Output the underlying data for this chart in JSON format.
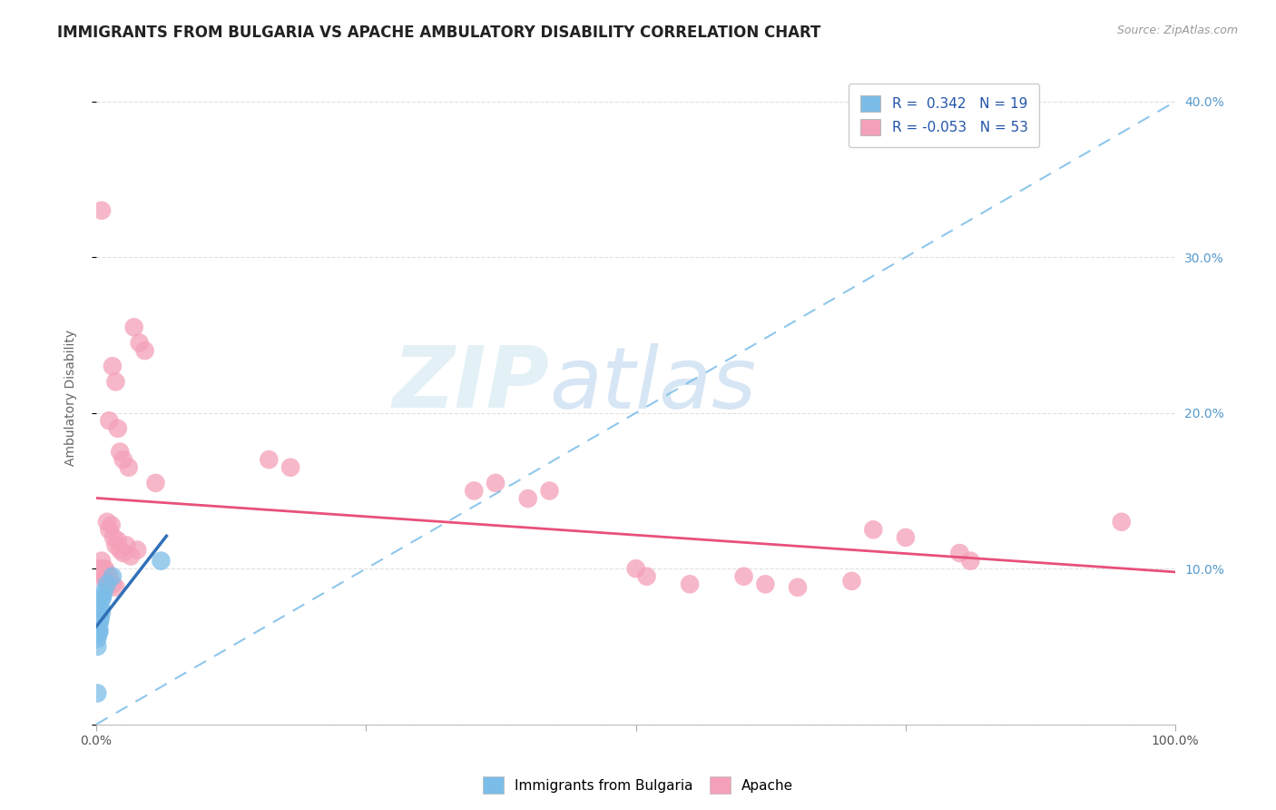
{
  "title": "IMMIGRANTS FROM BULGARIA VS APACHE AMBULATORY DISABILITY CORRELATION CHART",
  "source": "Source: ZipAtlas.com",
  "ylabel": "Ambulatory Disability",
  "xlim": [
    0.0,
    1.0
  ],
  "ylim": [
    0.0,
    0.42
  ],
  "y_ticks": [
    0.0,
    0.1,
    0.2,
    0.3,
    0.4
  ],
  "y_tick_labels": [
    "",
    "10.0%",
    "20.0%",
    "30.0%",
    "40.0%"
  ],
  "x_ticks": [
    0.0,
    0.25,
    0.5,
    0.75,
    1.0
  ],
  "x_tick_labels": [
    "0.0%",
    "",
    "",
    "",
    "100.0%"
  ],
  "blue_color": "#7bbde8",
  "pink_color": "#f4a0b8",
  "blue_line_color": "#3070b8",
  "pink_line_color": "#e8507a",
  "blue_scatter": [
    [
      0.001,
      0.06
    ],
    [
      0.001,
      0.055
    ],
    [
      0.001,
      0.05
    ],
    [
      0.002,
      0.065
    ],
    [
      0.002,
      0.06
    ],
    [
      0.002,
      0.058
    ],
    [
      0.003,
      0.07
    ],
    [
      0.003,
      0.065
    ],
    [
      0.003,
      0.06
    ],
    [
      0.004,
      0.075
    ],
    [
      0.004,
      0.068
    ],
    [
      0.005,
      0.08
    ],
    [
      0.005,
      0.072
    ],
    [
      0.006,
      0.082
    ],
    [
      0.007,
      0.085
    ],
    [
      0.01,
      0.09
    ],
    [
      0.015,
      0.095
    ],
    [
      0.06,
      0.105
    ],
    [
      0.001,
      0.02
    ]
  ],
  "pink_scatter": [
    [
      0.005,
      0.33
    ],
    [
      0.015,
      0.23
    ],
    [
      0.018,
      0.22
    ],
    [
      0.012,
      0.195
    ],
    [
      0.02,
      0.19
    ],
    [
      0.022,
      0.175
    ],
    [
      0.025,
      0.17
    ],
    [
      0.03,
      0.165
    ],
    [
      0.035,
      0.255
    ],
    [
      0.04,
      0.245
    ],
    [
      0.045,
      0.24
    ],
    [
      0.055,
      0.155
    ],
    [
      0.01,
      0.13
    ],
    [
      0.012,
      0.125
    ],
    [
      0.014,
      0.128
    ],
    [
      0.016,
      0.12
    ],
    [
      0.018,
      0.115
    ],
    [
      0.02,
      0.118
    ],
    [
      0.022,
      0.112
    ],
    [
      0.025,
      0.11
    ],
    [
      0.028,
      0.115
    ],
    [
      0.032,
      0.108
    ],
    [
      0.038,
      0.112
    ],
    [
      0.002,
      0.1
    ],
    [
      0.003,
      0.095
    ],
    [
      0.004,
      0.098
    ],
    [
      0.005,
      0.105
    ],
    [
      0.006,
      0.1
    ],
    [
      0.007,
      0.095
    ],
    [
      0.008,
      0.1
    ],
    [
      0.009,
      0.098
    ],
    [
      0.01,
      0.092
    ],
    [
      0.012,
      0.095
    ],
    [
      0.015,
      0.09
    ],
    [
      0.018,
      0.088
    ],
    [
      0.16,
      0.17
    ],
    [
      0.18,
      0.165
    ],
    [
      0.35,
      0.15
    ],
    [
      0.37,
      0.155
    ],
    [
      0.4,
      0.145
    ],
    [
      0.42,
      0.15
    ],
    [
      0.5,
      0.1
    ],
    [
      0.51,
      0.095
    ],
    [
      0.55,
      0.09
    ],
    [
      0.6,
      0.095
    ],
    [
      0.62,
      0.09
    ],
    [
      0.65,
      0.088
    ],
    [
      0.7,
      0.092
    ],
    [
      0.72,
      0.125
    ],
    [
      0.75,
      0.12
    ],
    [
      0.8,
      0.11
    ],
    [
      0.81,
      0.105
    ],
    [
      0.95,
      0.13
    ]
  ],
  "grid_color": "#e0e0e0",
  "background_color": "#ffffff",
  "watermark_zip": "ZIP",
  "watermark_atlas": "atlas",
  "title_fontsize": 12,
  "axis_label_fontsize": 10,
  "tick_fontsize": 10,
  "legend_fontsize": 11
}
